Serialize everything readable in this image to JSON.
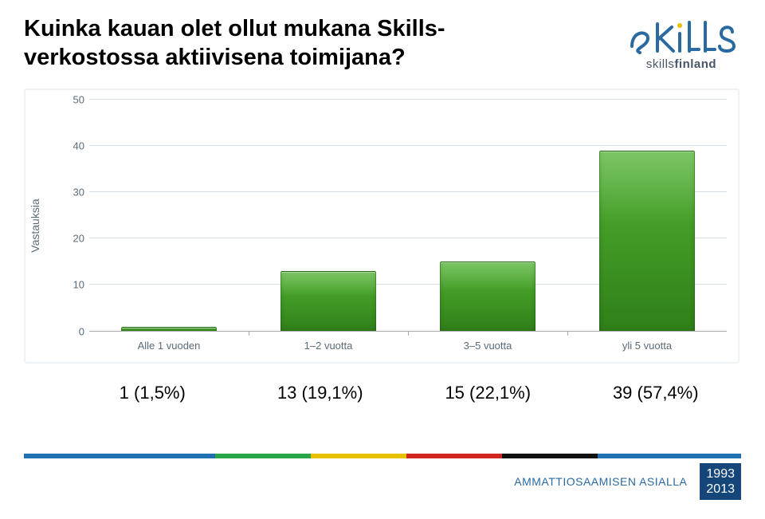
{
  "title": "Kuinka kauan olet ollut mukana Skills-verkostossa aktiivisena toimijana?",
  "logo": {
    "main": "Skills",
    "sub_prefix": "skills",
    "sub_suffix": "finland"
  },
  "chart": {
    "type": "bar",
    "ylabel": "Vastauksia",
    "ylim": [
      0,
      50
    ],
    "ytick_step": 10,
    "yticks": [
      0,
      10,
      20,
      30,
      40,
      50
    ],
    "grid_color": "#d6dde2",
    "axis_color": "#aaaaaa",
    "tick_label_color": "#5a6b78",
    "background_color": "#ffffff",
    "bar_fill": "#3b9a1f",
    "bar_gradient_top": "#52b233",
    "bar_gradient_bottom": "#2f7f18",
    "bar_width": 0.6,
    "categories": [
      "Alle 1 vuoden",
      "1–2 vuotta",
      "3–5 vuotta",
      "yli 5 vuotta"
    ],
    "values": [
      1,
      13,
      15,
      39
    ],
    "title_fontsize": 29,
    "label_fontsize": 14,
    "tick_fontsize": 13
  },
  "value_labels": [
    "1 (1,5%)",
    "13 (19,1%)",
    "15 (22,1%)",
    "39 (57,4%)"
  ],
  "footer": {
    "text": "AMMATTIOSAAMISEN ASIALLA",
    "years": [
      "1993",
      "2013"
    ],
    "bar_colors": [
      "#1f6fb2",
      "#2aa54a",
      "#e7c100",
      "#d1261f",
      "#111111",
      "#1f6fb2"
    ],
    "bar_weights": [
      4,
      2,
      2,
      2,
      2,
      3
    ],
    "box_bg": "#14467a",
    "text_color": "#2a6aa0"
  }
}
